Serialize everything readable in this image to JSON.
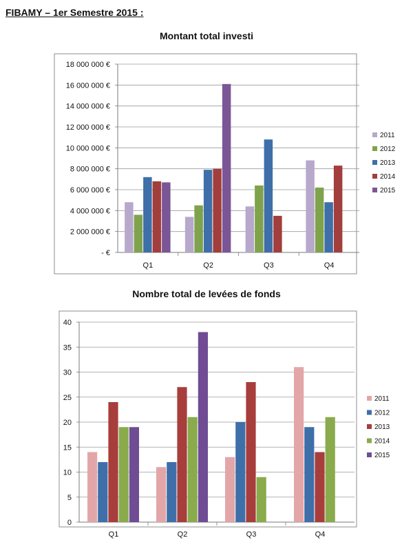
{
  "document": {
    "title": "FIBAMY – 1er Semestre 2015 :"
  },
  "chart_data": [
    {
      "type": "bar",
      "title": "Montant total investi",
      "categories": [
        "Q1",
        "Q2",
        "Q3",
        "Q4"
      ],
      "ylim": [
        0,
        18000000
      ],
      "yticks": [
        {
          "value": 0,
          "label": "- €"
        },
        {
          "value": 2000000,
          "label": "2 000 000 €"
        },
        {
          "value": 4000000,
          "label": "4 000 000 €"
        },
        {
          "value": 6000000,
          "label": "6 000 000 €"
        },
        {
          "value": 8000000,
          "label": "8 000 000 €"
        },
        {
          "value": 10000000,
          "label": "10 000 000 €"
        },
        {
          "value": 12000000,
          "label": "12 000 000 €"
        },
        {
          "value": 14000000,
          "label": "14 000 000 €"
        },
        {
          "value": 16000000,
          "label": "16 000 000 €"
        },
        {
          "value": 18000000,
          "label": "18 000 000 €"
        }
      ],
      "grid": true,
      "legend_position": "right",
      "series": [
        {
          "name": "2011",
          "color": "#B8A8CC",
          "values": [
            4800000,
            3400000,
            4400000,
            8800000
          ]
        },
        {
          "name": "2012",
          "color": "#7FA34C",
          "values": [
            3600000,
            4500000,
            6400000,
            6200000
          ]
        },
        {
          "name": "2013",
          "color": "#3E6FA9",
          "values": [
            7200000,
            7900000,
            10800000,
            4800000
          ]
        },
        {
          "name": "2014",
          "color": "#A23E3C",
          "values": [
            6800000,
            8000000,
            3500000,
            8300000
          ]
        },
        {
          "name": "2015",
          "color": "#7A5696",
          "values": [
            6700000,
            16100000,
            null,
            null
          ]
        }
      ]
    },
    {
      "type": "bar",
      "title": "Nombre total de levées de fonds",
      "categories": [
        "Q1",
        "Q2",
        "Q3",
        "Q4"
      ],
      "ylim": [
        0,
        40
      ],
      "yticks": [
        {
          "value": 0,
          "label": "0"
        },
        {
          "value": 5,
          "label": "5"
        },
        {
          "value": 10,
          "label": "10"
        },
        {
          "value": 15,
          "label": "15"
        },
        {
          "value": 20,
          "label": "20"
        },
        {
          "value": 25,
          "label": "25"
        },
        {
          "value": 30,
          "label": "30"
        },
        {
          "value": 35,
          "label": "35"
        },
        {
          "value": 40,
          "label": "40"
        }
      ],
      "grid": true,
      "legend_position": "right",
      "series": [
        {
          "name": "2011",
          "color": "#E3A6A8",
          "values": [
            14,
            11,
            13,
            31
          ]
        },
        {
          "name": "2012",
          "color": "#3E6FA9",
          "values": [
            12,
            12,
            20,
            19
          ]
        },
        {
          "name": "2013",
          "color": "#A73E3C",
          "values": [
            24,
            27,
            28,
            14
          ]
        },
        {
          "name": "2014",
          "color": "#8AAB4C",
          "values": [
            19,
            21,
            9,
            21
          ]
        },
        {
          "name": "2015",
          "color": "#6F4C94",
          "values": [
            19,
            38,
            null,
            null
          ]
        }
      ]
    }
  ]
}
